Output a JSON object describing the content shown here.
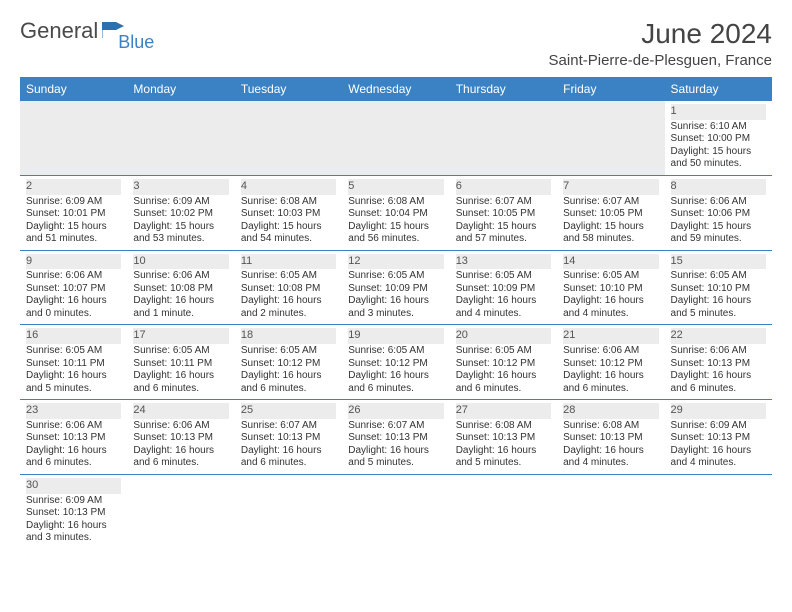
{
  "logo": {
    "part1": "General",
    "part2": "Blue"
  },
  "title": "June 2024",
  "location": "Saint-Pierre-de-Plesguen, France",
  "colors": {
    "header_bg": "#3b82c4",
    "header_text": "#ffffff",
    "shaded_bg": "#ececec",
    "border": "#3b82c4",
    "text": "#333333",
    "title_text": "#444444"
  },
  "day_headers": [
    "Sunday",
    "Monday",
    "Tuesday",
    "Wednesday",
    "Thursday",
    "Friday",
    "Saturday"
  ],
  "weeks": [
    [
      null,
      null,
      null,
      null,
      null,
      null,
      {
        "n": "1",
        "sr": "Sunrise: 6:10 AM",
        "ss": "Sunset: 10:00 PM",
        "dl1": "Daylight: 15 hours",
        "dl2": "and 50 minutes."
      }
    ],
    [
      {
        "n": "2",
        "sr": "Sunrise: 6:09 AM",
        "ss": "Sunset: 10:01 PM",
        "dl1": "Daylight: 15 hours",
        "dl2": "and 51 minutes."
      },
      {
        "n": "3",
        "sr": "Sunrise: 6:09 AM",
        "ss": "Sunset: 10:02 PM",
        "dl1": "Daylight: 15 hours",
        "dl2": "and 53 minutes."
      },
      {
        "n": "4",
        "sr": "Sunrise: 6:08 AM",
        "ss": "Sunset: 10:03 PM",
        "dl1": "Daylight: 15 hours",
        "dl2": "and 54 minutes."
      },
      {
        "n": "5",
        "sr": "Sunrise: 6:08 AM",
        "ss": "Sunset: 10:04 PM",
        "dl1": "Daylight: 15 hours",
        "dl2": "and 56 minutes."
      },
      {
        "n": "6",
        "sr": "Sunrise: 6:07 AM",
        "ss": "Sunset: 10:05 PM",
        "dl1": "Daylight: 15 hours",
        "dl2": "and 57 minutes."
      },
      {
        "n": "7",
        "sr": "Sunrise: 6:07 AM",
        "ss": "Sunset: 10:05 PM",
        "dl1": "Daylight: 15 hours",
        "dl2": "and 58 minutes."
      },
      {
        "n": "8",
        "sr": "Sunrise: 6:06 AM",
        "ss": "Sunset: 10:06 PM",
        "dl1": "Daylight: 15 hours",
        "dl2": "and 59 minutes."
      }
    ],
    [
      {
        "n": "9",
        "sr": "Sunrise: 6:06 AM",
        "ss": "Sunset: 10:07 PM",
        "dl1": "Daylight: 16 hours",
        "dl2": "and 0 minutes."
      },
      {
        "n": "10",
        "sr": "Sunrise: 6:06 AM",
        "ss": "Sunset: 10:08 PM",
        "dl1": "Daylight: 16 hours",
        "dl2": "and 1 minute."
      },
      {
        "n": "11",
        "sr": "Sunrise: 6:05 AM",
        "ss": "Sunset: 10:08 PM",
        "dl1": "Daylight: 16 hours",
        "dl2": "and 2 minutes."
      },
      {
        "n": "12",
        "sr": "Sunrise: 6:05 AM",
        "ss": "Sunset: 10:09 PM",
        "dl1": "Daylight: 16 hours",
        "dl2": "and 3 minutes."
      },
      {
        "n": "13",
        "sr": "Sunrise: 6:05 AM",
        "ss": "Sunset: 10:09 PM",
        "dl1": "Daylight: 16 hours",
        "dl2": "and 4 minutes."
      },
      {
        "n": "14",
        "sr": "Sunrise: 6:05 AM",
        "ss": "Sunset: 10:10 PM",
        "dl1": "Daylight: 16 hours",
        "dl2": "and 4 minutes."
      },
      {
        "n": "15",
        "sr": "Sunrise: 6:05 AM",
        "ss": "Sunset: 10:10 PM",
        "dl1": "Daylight: 16 hours",
        "dl2": "and 5 minutes."
      }
    ],
    [
      {
        "n": "16",
        "sr": "Sunrise: 6:05 AM",
        "ss": "Sunset: 10:11 PM",
        "dl1": "Daylight: 16 hours",
        "dl2": "and 5 minutes."
      },
      {
        "n": "17",
        "sr": "Sunrise: 6:05 AM",
        "ss": "Sunset: 10:11 PM",
        "dl1": "Daylight: 16 hours",
        "dl2": "and 6 minutes."
      },
      {
        "n": "18",
        "sr": "Sunrise: 6:05 AM",
        "ss": "Sunset: 10:12 PM",
        "dl1": "Daylight: 16 hours",
        "dl2": "and 6 minutes."
      },
      {
        "n": "19",
        "sr": "Sunrise: 6:05 AM",
        "ss": "Sunset: 10:12 PM",
        "dl1": "Daylight: 16 hours",
        "dl2": "and 6 minutes."
      },
      {
        "n": "20",
        "sr": "Sunrise: 6:05 AM",
        "ss": "Sunset: 10:12 PM",
        "dl1": "Daylight: 16 hours",
        "dl2": "and 6 minutes."
      },
      {
        "n": "21",
        "sr": "Sunrise: 6:06 AM",
        "ss": "Sunset: 10:12 PM",
        "dl1": "Daylight: 16 hours",
        "dl2": "and 6 minutes."
      },
      {
        "n": "22",
        "sr": "Sunrise: 6:06 AM",
        "ss": "Sunset: 10:13 PM",
        "dl1": "Daylight: 16 hours",
        "dl2": "and 6 minutes."
      }
    ],
    [
      {
        "n": "23",
        "sr": "Sunrise: 6:06 AM",
        "ss": "Sunset: 10:13 PM",
        "dl1": "Daylight: 16 hours",
        "dl2": "and 6 minutes."
      },
      {
        "n": "24",
        "sr": "Sunrise: 6:06 AM",
        "ss": "Sunset: 10:13 PM",
        "dl1": "Daylight: 16 hours",
        "dl2": "and 6 minutes."
      },
      {
        "n": "25",
        "sr": "Sunrise: 6:07 AM",
        "ss": "Sunset: 10:13 PM",
        "dl1": "Daylight: 16 hours",
        "dl2": "and 6 minutes."
      },
      {
        "n": "26",
        "sr": "Sunrise: 6:07 AM",
        "ss": "Sunset: 10:13 PM",
        "dl1": "Daylight: 16 hours",
        "dl2": "and 5 minutes."
      },
      {
        "n": "27",
        "sr": "Sunrise: 6:08 AM",
        "ss": "Sunset: 10:13 PM",
        "dl1": "Daylight: 16 hours",
        "dl2": "and 5 minutes."
      },
      {
        "n": "28",
        "sr": "Sunrise: 6:08 AM",
        "ss": "Sunset: 10:13 PM",
        "dl1": "Daylight: 16 hours",
        "dl2": "and 4 minutes."
      },
      {
        "n": "29",
        "sr": "Sunrise: 6:09 AM",
        "ss": "Sunset: 10:13 PM",
        "dl1": "Daylight: 16 hours",
        "dl2": "and 4 minutes."
      }
    ],
    [
      {
        "n": "30",
        "sr": "Sunrise: 6:09 AM",
        "ss": "Sunset: 10:13 PM",
        "dl1": "Daylight: 16 hours",
        "dl2": "and 3 minutes."
      },
      null,
      null,
      null,
      null,
      null,
      null
    ]
  ]
}
